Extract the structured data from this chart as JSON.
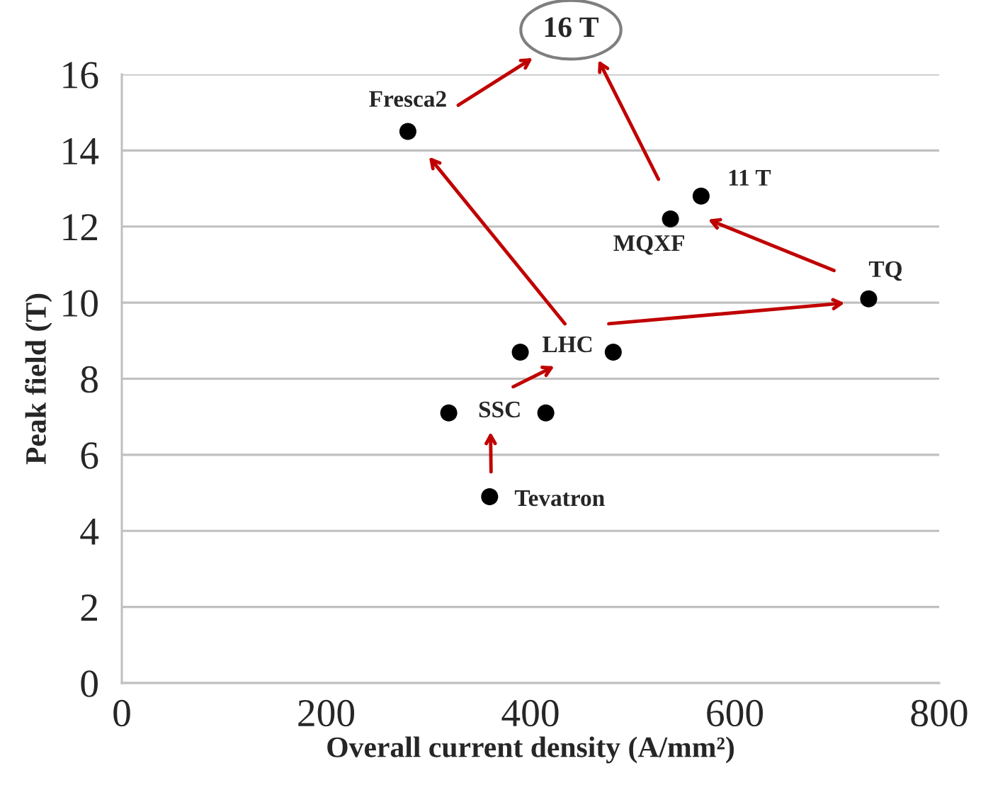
{
  "chart_data": {
    "type": "scatter",
    "xlabel": "Overall current density (A/mm²)",
    "ylabel": "Peak field (T)",
    "xlim": [
      0,
      800
    ],
    "xticks": [
      0,
      200,
      400,
      600,
      800
    ],
    "ylim": [
      0,
      16
    ],
    "yticks": [
      0,
      2,
      4,
      6,
      8,
      10,
      12,
      14,
      16
    ],
    "grid": "y",
    "legend": false,
    "marker": "circle",
    "series": [
      {
        "color": "#000000",
        "x": [
          280,
          537,
          731,
          390,
          320,
          360
        ],
        "values": [
          14.5,
          12.2,
          10.1,
          8.7,
          7.1,
          4.9
        ]
      },
      {
        "color": "#000000",
        "x": [
          567,
          481,
          415
        ],
        "values": [
          12.8,
          8.7,
          7.1
        ]
      }
    ],
    "annotations": [
      {
        "text": "Fresca2",
        "x": 280,
        "y": 14.5
      },
      {
        "text": "MQXF",
        "x": 537,
        "y": 12.2
      },
      {
        "text": "11 T",
        "x": 567,
        "y": 12.8
      },
      {
        "text": "TQ",
        "x": 731,
        "y": 10.1
      },
      {
        "text": "LHC",
        "x": 390,
        "y": 8.7
      },
      {
        "text": "SSC",
        "x": 320,
        "y": 7.1
      },
      {
        "text": "Tevatron",
        "x": 360,
        "y": 4.9
      },
      "16 T"
    ]
  }
}
